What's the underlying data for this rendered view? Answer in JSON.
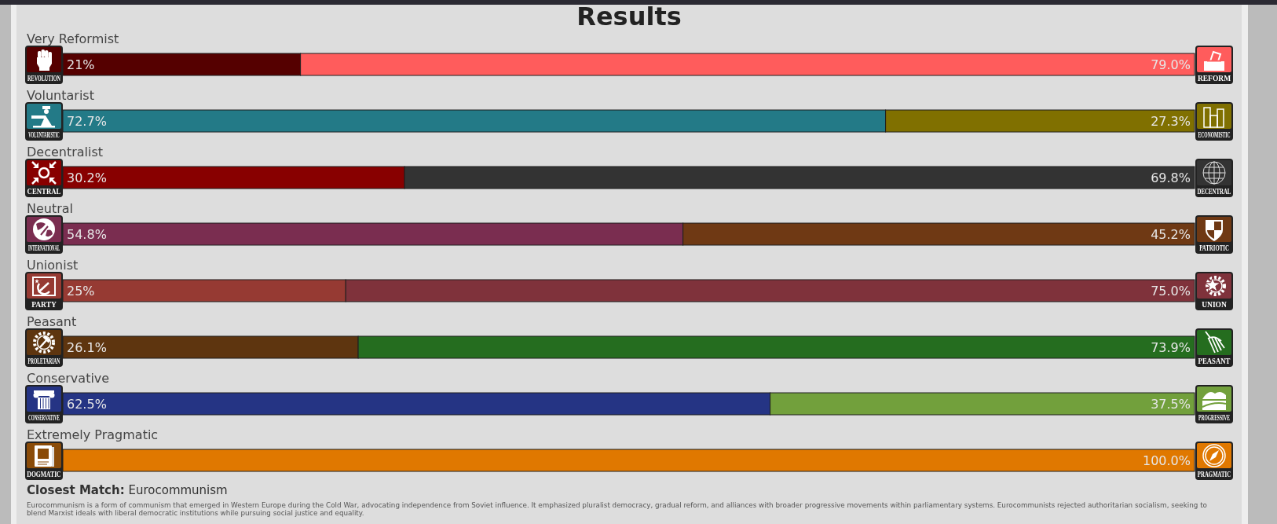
{
  "chart_data": {
    "type": "bar",
    "orientation": "horizontal",
    "stacked": true,
    "title": "Results",
    "categories": [
      "Very Reformist",
      "Voluntarist",
      "Decentralist",
      "Neutral",
      "Unionist",
      "Peasant",
      "Conservative",
      "Extremely Pragmatic"
    ],
    "xlim": [
      0,
      100
    ],
    "tick_labels": "y",
    "series": [
      {
        "colors": [
          "#550000",
          "#237a87",
          "#880000",
          "#7a2d50",
          "#963a33",
          "#5e350f",
          "#253484",
          "#8a4b08"
        ],
        "values": [
          21,
          72.7,
          30.2,
          54.8,
          25,
          26.1,
          62.5,
          null
        ],
        "value_labels": [
          "21%",
          "72.7%",
          "30.2%",
          "54.8%",
          "25%",
          "26.1%",
          "62.5%",
          null
        ]
      },
      {
        "colors": [
          "#ff5c5c",
          "#807000",
          "#333333",
          "#6f3914",
          "#7f323b",
          "#256d1f",
          "#72a03c",
          "#e07800"
        ],
        "values": [
          79,
          27.3,
          69.8,
          45.2,
          75,
          73.9,
          37.5,
          100
        ],
        "value_labels": [
          "79.0%",
          "27.3%",
          "69.8%",
          "45.2%",
          "75.0%",
          "73.9%",
          "37.5%",
          "100.0%"
        ]
      }
    ],
    "annotations": [
      "REVOLUTION",
      "REFORM",
      "VOLUNTARISTIC",
      "ECONOMISTIC",
      "CENTRAL",
      "DECENTRAL",
      "INTERNATIONAL",
      "PATRIOTIC",
      "PARTY",
      "UNION",
      "PROLETARIAN",
      "PEASANT",
      "CONSERVATIVE",
      "PROGRESSIVE",
      "DOGMATIC",
      "PRAGMATIC",
      "Closest Match:",
      "Eurocommunism",
      "Eurocommunism is a form of communism that emerged in Western Europe during the Cold War, advocating independence from Soviet influence. It emphasized pluralist democracy, gradual reform, and alliances with broader progressive movements within parliamentary systems. Eurocommunists rejected authoritarian socialism, seeking to blend Marxist ideals with liberal democratic institutions while pursuing social justice and equality."
    ]
  }
}
